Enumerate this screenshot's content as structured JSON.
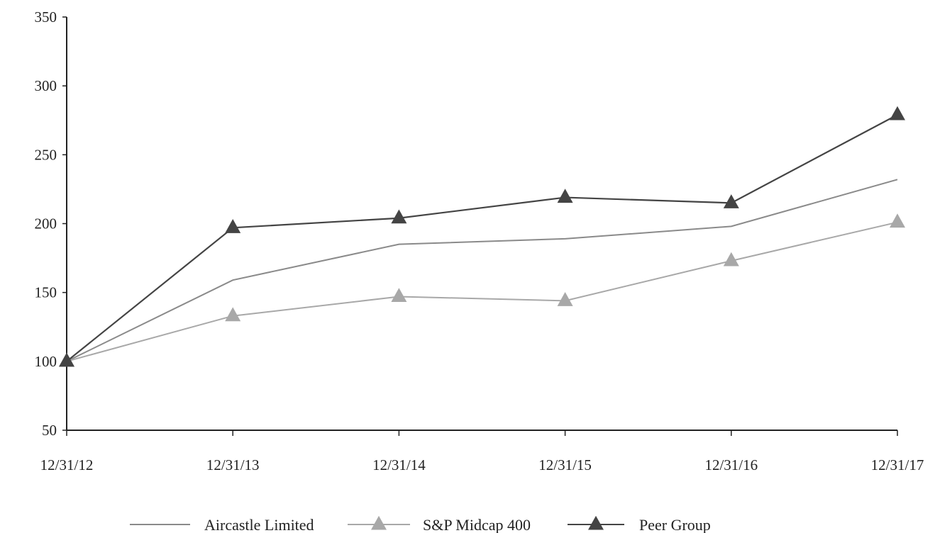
{
  "chart_data": {
    "type": "line",
    "title": "",
    "xlabel": "",
    "ylabel": "",
    "categories": [
      "12/31/12",
      "12/31/13",
      "12/31/14",
      "12/31/15",
      "12/31/16",
      "12/31/17"
    ],
    "ylim": [
      50,
      350
    ],
    "yticks": [
      50,
      100,
      150,
      200,
      250,
      300,
      350
    ],
    "grid": false,
    "legend_position": "bottom",
    "series": [
      {
        "name": "Aircastle Limited",
        "values": [
          100,
          159,
          185,
          189,
          198,
          232
        ],
        "color": "#8a8a8a",
        "marker": "none"
      },
      {
        "name": "S&P Midcap 400",
        "values": [
          100,
          133,
          147,
          144,
          173,
          201
        ],
        "color": "#a8a8a8",
        "marker": "triangle"
      },
      {
        "name": "Peer Group",
        "values": [
          100,
          197,
          204,
          219,
          215,
          279
        ],
        "color": "#444444",
        "marker": "triangle"
      }
    ]
  }
}
